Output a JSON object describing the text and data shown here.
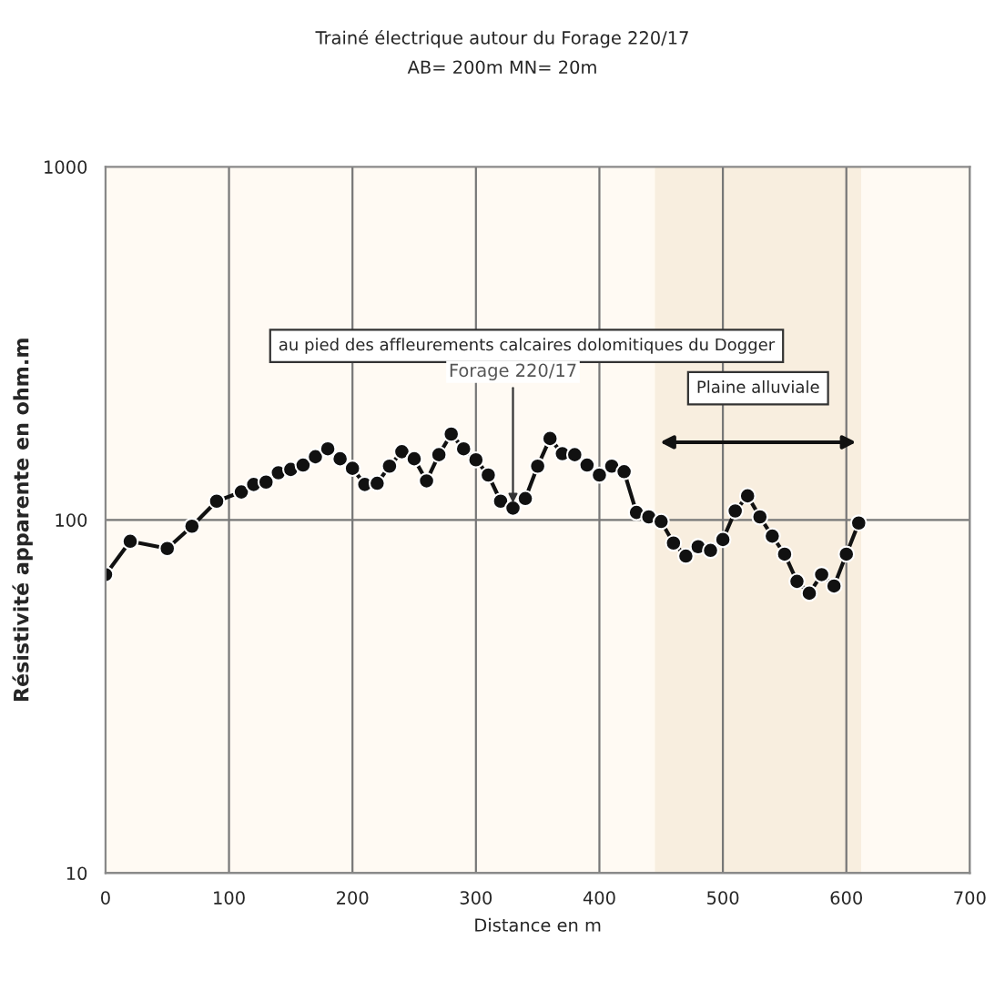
{
  "chart_data": {
    "type": "line",
    "title": "Trainé électrique autour du Forage 220/17",
    "subtitle": "AB= 200m MN= 20m",
    "xlabel": "Distance en m",
    "ylabel": "Résistivité apparente en ohm.m",
    "x": [
      0,
      20,
      50,
      70,
      90,
      110,
      120,
      130,
      140,
      150,
      160,
      170,
      180,
      190,
      200,
      210,
      220,
      230,
      240,
      250,
      260,
      270,
      280,
      290,
      300,
      310,
      320,
      330,
      340,
      350,
      360,
      370,
      380,
      390,
      400,
      410,
      420,
      430,
      440,
      450,
      460,
      470,
      480,
      490,
      500,
      510,
      520,
      530,
      540,
      550,
      560,
      570,
      580,
      590,
      600,
      610
    ],
    "series": [
      {
        "color": "#111111",
        "values": [
          70,
          87,
          83,
          96,
          113,
          120,
          126,
          128,
          136,
          139,
          143,
          151,
          159,
          149,
          140,
          126,
          127,
          142,
          156,
          149,
          129,
          153,
          175,
          159,
          148,
          134,
          113,
          108,
          115,
          142,
          170,
          154,
          153,
          143,
          134,
          142,
          137,
          105,
          102,
          99,
          86,
          79,
          84,
          82,
          88,
          106,
          117,
          102,
          90,
          80,
          67,
          62,
          70,
          65,
          80,
          98
        ]
      }
    ],
    "marker": "circle",
    "line_style": "solid",
    "log": "y",
    "xlim": [
      0,
      700
    ],
    "xticks": [
      0,
      100,
      200,
      300,
      400,
      500,
      600,
      700
    ],
    "ylim": [
      10,
      1000
    ],
    "yticks": [
      10,
      100,
      1000
    ],
    "grid": true,
    "annotations": [
      "au pied des affleurements calcaires dolomitiques du Dogger",
      {
        "text": "Forage 220/17",
        "x": 330,
        "y": 108
      }
    ],
    "bands": [
      {
        "axis": "x",
        "from": 445,
        "to": 612,
        "label": "Plaine alluviale",
        "color": "#f3e6d2"
      }
    ]
  }
}
